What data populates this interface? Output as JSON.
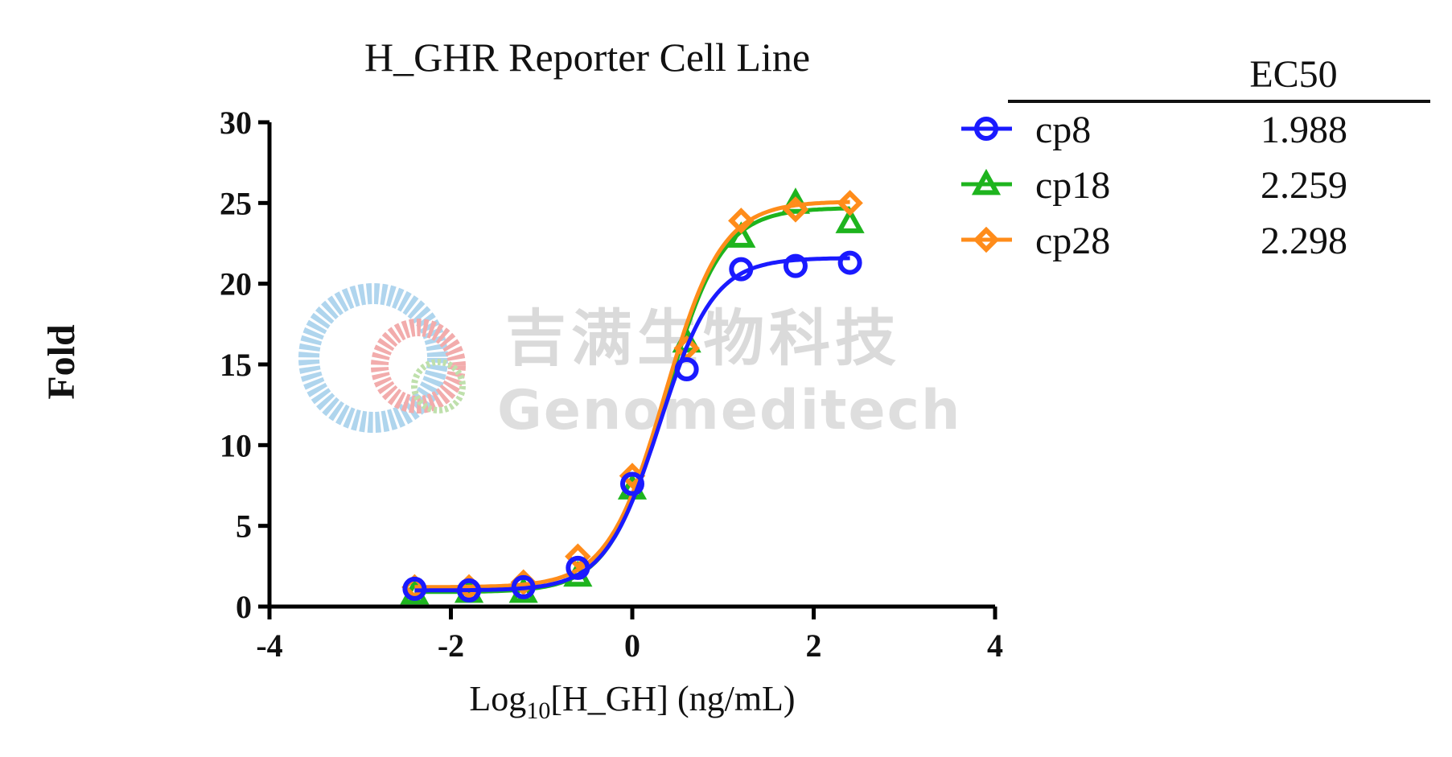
{
  "chart_data": {
    "type": "line",
    "title": "H_GHR Reporter Cell Line",
    "xlabel": {
      "main": "Log",
      "sub": "10",
      "rest": "[H_GH] (ng/mL)"
    },
    "ylabel": "Fold",
    "xlim": [
      -4,
      4
    ],
    "ylim": [
      0,
      30
    ],
    "x_ticks": [
      -4,
      -2,
      0,
      2,
      4
    ],
    "y_ticks": [
      0,
      5,
      10,
      15,
      20,
      25,
      30
    ],
    "x_tick_labels": [
      "-4",
      "-2",
      "0",
      "2",
      "4"
    ],
    "y_tick_labels": [
      "0",
      "5",
      "10",
      "15",
      "20",
      "25",
      "30"
    ],
    "legend_header": "EC50",
    "legend_position": "top-right, outside plot",
    "x": [
      -2.4,
      -1.8,
      -1.2,
      -0.6,
      0.0,
      0.6,
      1.2,
      1.8,
      2.4
    ],
    "series": [
      {
        "name": "cp8",
        "ec50": "1.988",
        "color": "#1a1aff",
        "marker": "circle",
        "values": [
          1.1,
          1.0,
          1.2,
          2.4,
          7.6,
          14.7,
          20.9,
          21.1,
          21.3
        ],
        "fit": {
          "bottom": 1.0,
          "top": 21.6,
          "logec50": 0.3,
          "hill": 1.45
        }
      },
      {
        "name": "cp18",
        "ec50": "2.259",
        "color": "#1eb41e",
        "marker": "triangle",
        "values": [
          0.8,
          0.9,
          0.9,
          1.9,
          7.3,
          16.4,
          22.9,
          25.0,
          23.8
        ],
        "fit": {
          "bottom": 0.9,
          "top": 24.7,
          "logec50": 0.36,
          "hill": 1.4
        }
      },
      {
        "name": "cp28",
        "ec50": "2.298",
        "color": "#ff8c1a",
        "marker": "diamond",
        "values": [
          1.2,
          1.2,
          1.5,
          3.1,
          8.1,
          16.0,
          23.9,
          24.6,
          25.0
        ],
        "fit": {
          "bottom": 1.2,
          "top": 25.1,
          "logec50": 0.36,
          "hill": 1.38
        }
      }
    ]
  },
  "watermark": {
    "chinese": "吉满生物科技",
    "english": "Genomeditech"
  }
}
